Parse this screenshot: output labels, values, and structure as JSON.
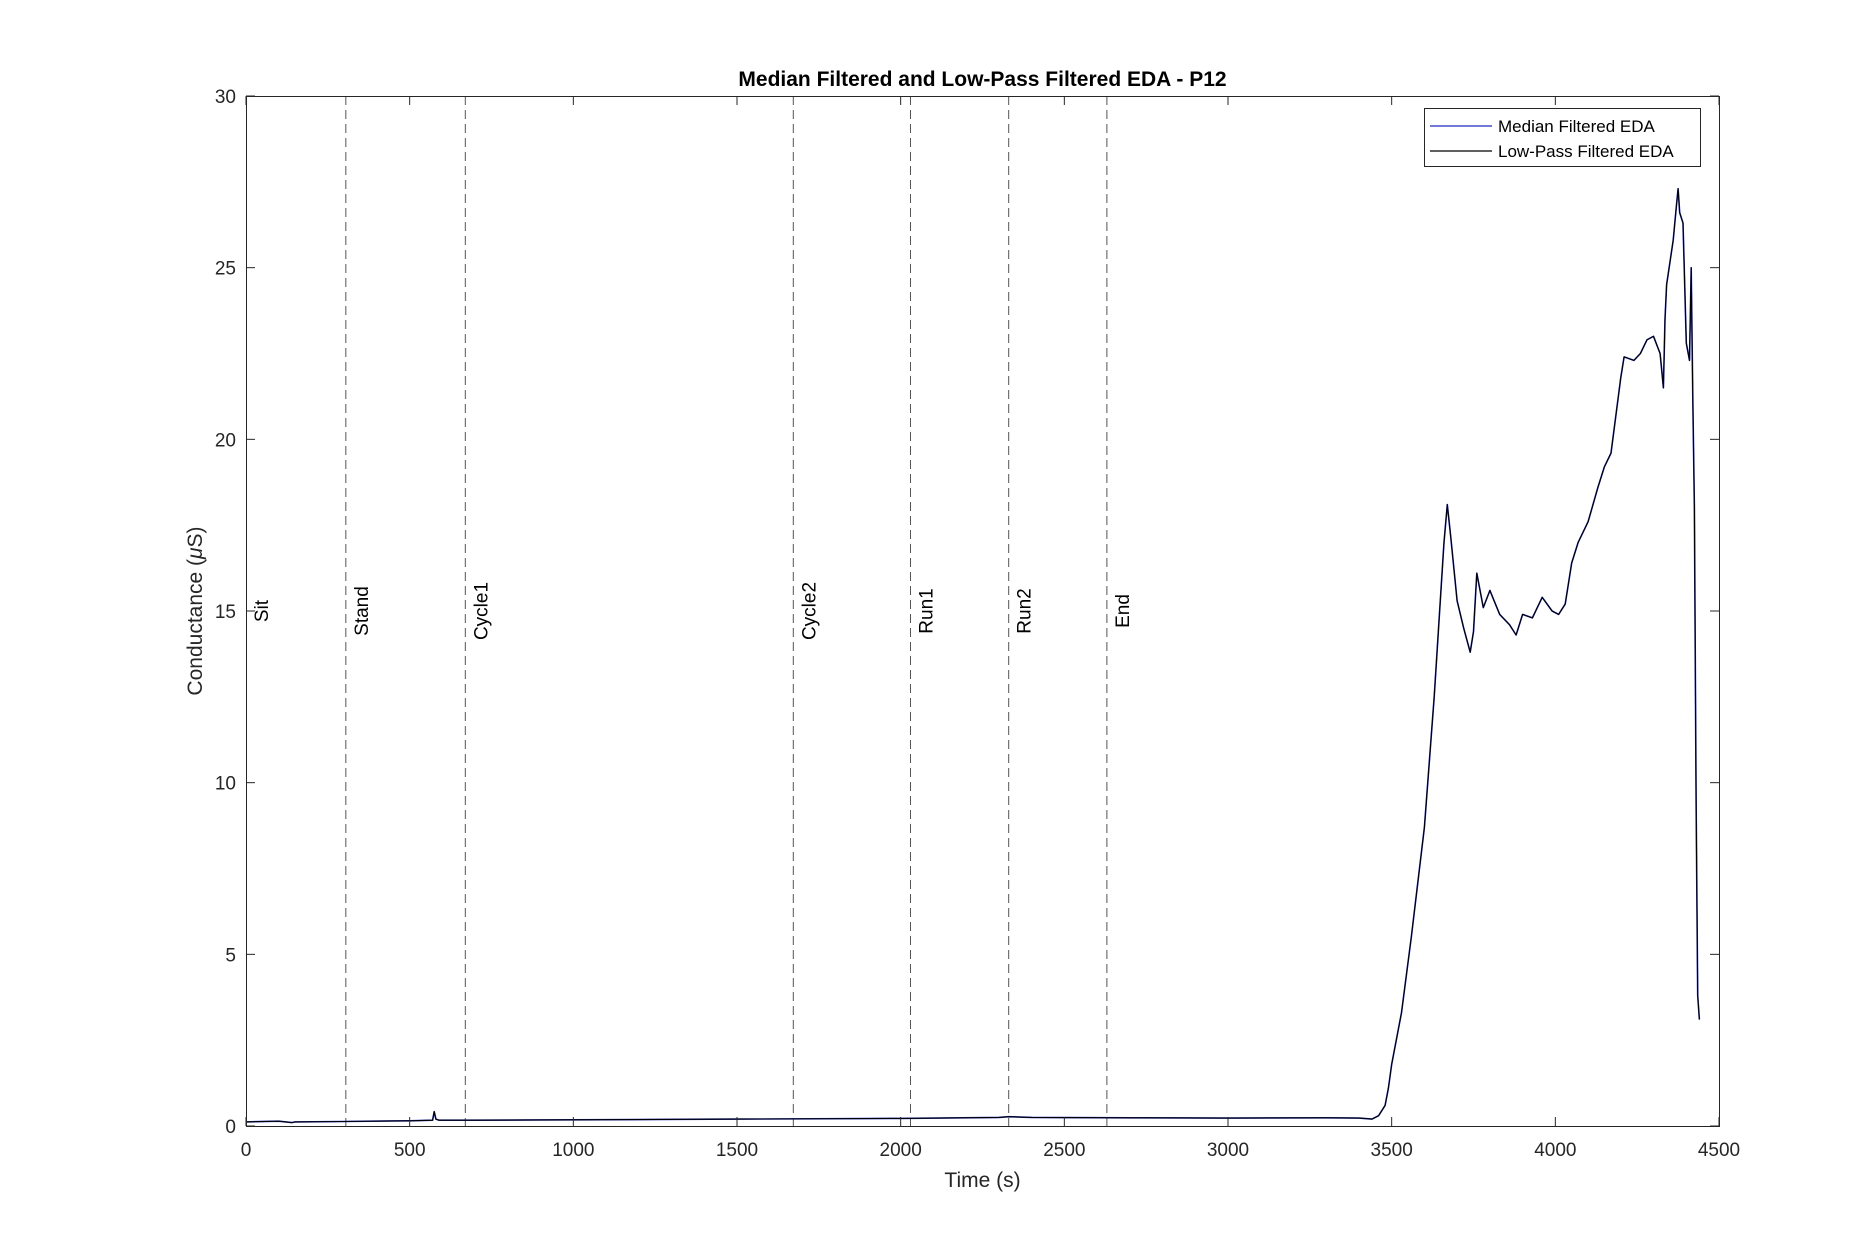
{
  "chart_data": {
    "type": "line",
    "title": "Median Filtered and Low-Pass Filtered EDA - P12",
    "xlabel": "Time (s)",
    "ylabel_prefix": "Conductance (",
    "ylabel_mu": "μ",
    "ylabel_suffix": "S)",
    "xlim": [
      0,
      4500
    ],
    "ylim": [
      0,
      30
    ],
    "xticks": [
      0,
      500,
      1000,
      1500,
      2000,
      2500,
      3000,
      3500,
      4000,
      4500
    ],
    "yticks": [
      0,
      5,
      10,
      15,
      20,
      25,
      30
    ],
    "grid": false,
    "legend_position": "top-right",
    "phase_markers": [
      {
        "label": "Sit",
        "x": 0
      },
      {
        "label": "Stand",
        "x": 305
      },
      {
        "label": "Cycle1",
        "x": 670
      },
      {
        "label": "Cycle2",
        "x": 1672
      },
      {
        "label": "Run1",
        "x": 2030
      },
      {
        "label": "Run2",
        "x": 2330
      },
      {
        "label": "End",
        "x": 2630
      }
    ],
    "marker_label_y": 15,
    "series": [
      {
        "name": "Median Filtered EDA",
        "color": "#1f2bbf",
        "x": [
          0,
          100,
          140,
          150,
          300,
          500,
          570,
          575,
          580,
          590,
          700,
          1000,
          1500,
          2000,
          2300,
          2330,
          2400,
          2700,
          3000,
          3300,
          3400,
          3440,
          3460,
          3480,
          3490,
          3500,
          3530,
          3560,
          3600,
          3630,
          3660,
          3670,
          3680,
          3700,
          3720,
          3740,
          3750,
          3760,
          3780,
          3800,
          3830,
          3860,
          3880,
          3900,
          3930,
          3960,
          3990,
          4010,
          4030,
          4050,
          4070,
          4100,
          4130,
          4150,
          4170,
          4200,
          4210,
          4240,
          4260,
          4280,
          4300,
          4320,
          4330,
          4335,
          4340,
          4360,
          4370,
          4375,
          4380,
          4390,
          4400,
          4410,
          4415,
          4420,
          4425,
          4430,
          4435,
          4440
        ],
        "y": [
          0.12,
          0.14,
          0.1,
          0.12,
          0.13,
          0.15,
          0.17,
          0.42,
          0.2,
          0.17,
          0.17,
          0.18,
          0.2,
          0.22,
          0.25,
          0.27,
          0.25,
          0.24,
          0.23,
          0.24,
          0.23,
          0.2,
          0.3,
          0.6,
          1.1,
          1.8,
          3.3,
          5.5,
          8.7,
          12.5,
          17.0,
          18.1,
          17.2,
          15.3,
          14.5,
          13.8,
          14.4,
          16.1,
          15.1,
          15.6,
          14.9,
          14.6,
          14.3,
          14.9,
          14.8,
          15.4,
          15.0,
          14.9,
          15.2,
          16.4,
          17.0,
          17.6,
          18.6,
          19.2,
          19.6,
          21.8,
          22.4,
          22.3,
          22.5,
          22.9,
          23.0,
          22.5,
          21.5,
          23.5,
          24.5,
          25.8,
          26.8,
          27.3,
          26.6,
          26.3,
          22.8,
          22.3,
          25.0,
          21.2,
          18.0,
          9.5,
          3.8,
          3.1
        ]
      },
      {
        "name": "Low-Pass Filtered EDA",
        "color": "#000000",
        "x": [
          0,
          100,
          140,
          150,
          300,
          500,
          570,
          575,
          580,
          590,
          700,
          1000,
          1500,
          2000,
          2300,
          2330,
          2400,
          2700,
          3000,
          3300,
          3400,
          3440,
          3460,
          3480,
          3490,
          3500,
          3530,
          3560,
          3600,
          3630,
          3660,
          3670,
          3680,
          3700,
          3720,
          3740,
          3750,
          3760,
          3780,
          3800,
          3830,
          3860,
          3880,
          3900,
          3930,
          3960,
          3990,
          4010,
          4030,
          4050,
          4070,
          4100,
          4130,
          4150,
          4170,
          4200,
          4210,
          4240,
          4260,
          4280,
          4300,
          4320,
          4330,
          4335,
          4340,
          4360,
          4370,
          4375,
          4380,
          4390,
          4400,
          4410,
          4415,
          4420,
          4425,
          4430,
          4435,
          4440
        ],
        "y": [
          0.12,
          0.14,
          0.1,
          0.12,
          0.13,
          0.15,
          0.17,
          0.42,
          0.2,
          0.17,
          0.17,
          0.18,
          0.2,
          0.22,
          0.25,
          0.27,
          0.25,
          0.24,
          0.23,
          0.24,
          0.23,
          0.2,
          0.3,
          0.6,
          1.1,
          1.8,
          3.3,
          5.5,
          8.7,
          12.5,
          17.0,
          18.1,
          17.2,
          15.3,
          14.5,
          13.8,
          14.4,
          16.1,
          15.1,
          15.6,
          14.9,
          14.6,
          14.3,
          14.9,
          14.8,
          15.4,
          15.0,
          14.9,
          15.2,
          16.4,
          17.0,
          17.6,
          18.6,
          19.2,
          19.6,
          21.8,
          22.4,
          22.3,
          22.5,
          22.9,
          23.0,
          22.5,
          21.5,
          23.5,
          24.5,
          25.8,
          26.8,
          27.3,
          26.6,
          26.3,
          22.8,
          22.3,
          25.0,
          21.2,
          18.0,
          9.5,
          3.8,
          3.1
        ]
      }
    ]
  }
}
